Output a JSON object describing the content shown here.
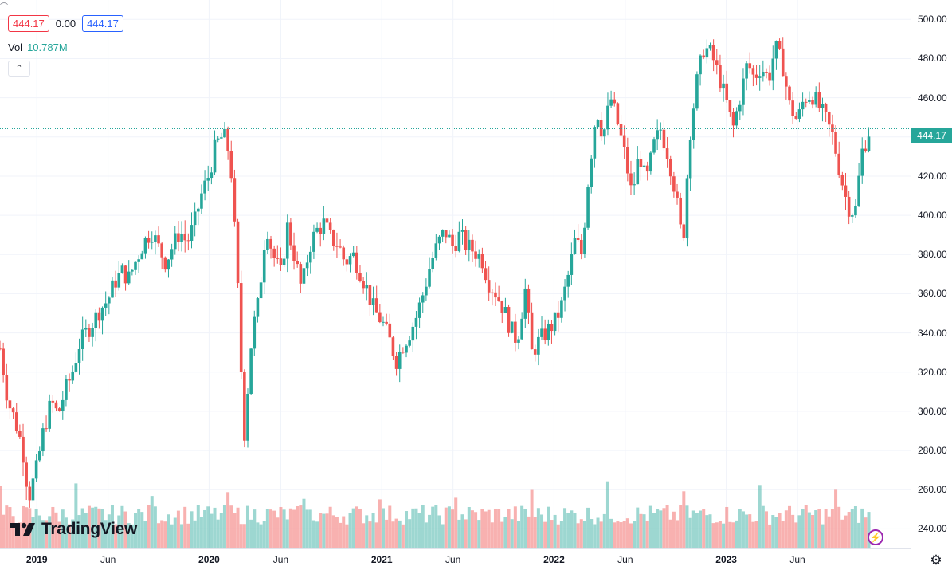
{
  "legend": {
    "open_value": "444.17",
    "change_value": "0.00",
    "close_value": "444.17",
    "volume_label": "Vol",
    "volume_value": "10.787M",
    "collapse_icon": "chevron-up-icon"
  },
  "branding": {
    "logo_text": "TradingView"
  },
  "current_price": "444.17",
  "colors": {
    "up": "#26a69a",
    "down": "#ef5350",
    "grid": "#f0f3fa",
    "accent": "#2962ff"
  },
  "chart_data": {
    "type": "candlestick",
    "price_axis": {
      "labels": [
        "500.00",
        "480.00",
        "460.00",
        "440.00",
        "420.00",
        "400.00",
        "380.00",
        "360.00",
        "340.00",
        "320.00",
        "300.00",
        "280.00",
        "260.00",
        "240.00"
      ]
    },
    "ylim": [
      230,
      505
    ],
    "time_axis": {
      "labels": [
        {
          "text": "2019",
          "date": "2019-01-01",
          "year": true
        },
        {
          "text": "Jun",
          "date": "2019-06-01",
          "year": false
        },
        {
          "text": "2020",
          "date": "2020-01-01",
          "year": true
        },
        {
          "text": "Jun",
          "date": "2020-06-01",
          "year": false
        },
        {
          "text": "2021",
          "date": "2021-01-01",
          "year": true
        },
        {
          "text": "Jun",
          "date": "2021-06-01",
          "year": false
        },
        {
          "text": "2022",
          "date": "2022-01-01",
          "year": true
        },
        {
          "text": "Jun",
          "date": "2022-06-01",
          "year": false
        },
        {
          "text": "2023",
          "date": "2023-01-01",
          "year": true
        },
        {
          "text": "Jun",
          "date": "2023-06-01",
          "year": false
        }
      ]
    },
    "xlim": [
      "2018-10-15",
      "2023-11-15"
    ],
    "close_series": [
      [
        "2018-10-15",
        332
      ],
      [
        "2018-11-01",
        305
      ],
      [
        "2018-11-15",
        296
      ],
      [
        "2018-12-01",
        282
      ],
      [
        "2018-12-15",
        256
      ],
      [
        "2019-01-01",
        271
      ],
      [
        "2019-01-15",
        290
      ],
      [
        "2019-02-01",
        305
      ],
      [
        "2019-02-15",
        298
      ],
      [
        "2019-03-01",
        310
      ],
      [
        "2019-03-15",
        318
      ],
      [
        "2019-04-01",
        334
      ],
      [
        "2019-04-15",
        340
      ],
      [
        "2019-05-01",
        346
      ],
      [
        "2019-05-15",
        352
      ],
      [
        "2019-06-01",
        357
      ],
      [
        "2019-06-15",
        366
      ],
      [
        "2019-07-01",
        371
      ],
      [
        "2019-07-15",
        368
      ],
      [
        "2019-08-01",
        378
      ],
      [
        "2019-08-15",
        386
      ],
      [
        "2019-09-01",
        392
      ],
      [
        "2019-09-15",
        384
      ],
      [
        "2019-10-01",
        376
      ],
      [
        "2019-10-15",
        384
      ],
      [
        "2019-11-01",
        392
      ],
      [
        "2019-11-15",
        386
      ],
      [
        "2019-12-01",
        396
      ],
      [
        "2019-12-15",
        410
      ],
      [
        "2020-01-01",
        421
      ],
      [
        "2020-01-15",
        436
      ],
      [
        "2020-02-01",
        441
      ],
      [
        "2020-02-15",
        430
      ],
      [
        "2020-03-01",
        368
      ],
      [
        "2020-03-15",
        286
      ],
      [
        "2020-04-01",
        340
      ],
      [
        "2020-04-15",
        356
      ],
      [
        "2020-05-01",
        396
      ],
      [
        "2020-05-15",
        380
      ],
      [
        "2020-06-01",
        370
      ],
      [
        "2020-06-15",
        394
      ],
      [
        "2020-07-01",
        378
      ],
      [
        "2020-07-15",
        362
      ],
      [
        "2020-08-01",
        384
      ],
      [
        "2020-08-15",
        392
      ],
      [
        "2020-09-01",
        396
      ],
      [
        "2020-09-15",
        388
      ],
      [
        "2020-10-01",
        385
      ],
      [
        "2020-10-15",
        376
      ],
      [
        "2020-11-01",
        380
      ],
      [
        "2020-11-15",
        372
      ],
      [
        "2020-12-01",
        362
      ],
      [
        "2020-12-15",
        352
      ],
      [
        "2021-01-01",
        346
      ],
      [
        "2021-01-15",
        338
      ],
      [
        "2021-02-01",
        326
      ],
      [
        "2021-02-15",
        334
      ],
      [
        "2021-03-01",
        340
      ],
      [
        "2021-03-15",
        348
      ],
      [
        "2021-04-01",
        362
      ],
      [
        "2021-04-15",
        376
      ],
      [
        "2021-05-01",
        386
      ],
      [
        "2021-05-15",
        392
      ],
      [
        "2021-06-01",
        384
      ],
      [
        "2021-06-15",
        390
      ],
      [
        "2021-07-01",
        384
      ],
      [
        "2021-07-15",
        382
      ],
      [
        "2021-08-01",
        378
      ],
      [
        "2021-08-15",
        366
      ],
      [
        "2021-09-01",
        360
      ],
      [
        "2021-09-15",
        353
      ],
      [
        "2021-10-01",
        342
      ],
      [
        "2021-10-15",
        336
      ],
      [
        "2021-11-01",
        362
      ],
      [
        "2021-11-15",
        330
      ],
      [
        "2021-12-01",
        336
      ],
      [
        "2021-12-15",
        340
      ],
      [
        "2022-01-01",
        345
      ],
      [
        "2022-01-15",
        352
      ],
      [
        "2022-02-01",
        370
      ],
      [
        "2022-02-15",
        388
      ],
      [
        "2022-03-01",
        380
      ],
      [
        "2022-03-15",
        420
      ],
      [
        "2022-04-01",
        455
      ],
      [
        "2022-04-15",
        440
      ],
      [
        "2022-05-01",
        460
      ],
      [
        "2022-05-15",
        448
      ],
      [
        "2022-06-01",
        430
      ],
      [
        "2022-06-15",
        410
      ],
      [
        "2022-07-01",
        432
      ],
      [
        "2022-07-15",
        416
      ],
      [
        "2022-08-01",
        436
      ],
      [
        "2022-08-15",
        444
      ],
      [
        "2022-09-01",
        430
      ],
      [
        "2022-09-15",
        412
      ],
      [
        "2022-10-01",
        384
      ],
      [
        "2022-10-15",
        440
      ],
      [
        "2022-11-01",
        470
      ],
      [
        "2022-11-15",
        486
      ],
      [
        "2022-12-01",
        482
      ],
      [
        "2022-12-15",
        472
      ],
      [
        "2023-01-01",
        458
      ],
      [
        "2023-01-15",
        444
      ],
      [
        "2023-02-01",
        462
      ],
      [
        "2023-02-15",
        478
      ],
      [
        "2023-03-01",
        470
      ],
      [
        "2023-03-15",
        476
      ],
      [
        "2023-04-01",
        470
      ],
      [
        "2023-04-15",
        486
      ],
      [
        "2023-05-01",
        476
      ],
      [
        "2023-05-15",
        456
      ],
      [
        "2023-06-01",
        448
      ],
      [
        "2023-06-15",
        460
      ],
      [
        "2023-07-01",
        462
      ],
      [
        "2023-07-15",
        456
      ],
      [
        "2023-08-01",
        448
      ],
      [
        "2023-08-15",
        440
      ],
      [
        "2023-09-01",
        420
      ],
      [
        "2023-09-15",
        405
      ],
      [
        "2023-10-01",
        401
      ],
      [
        "2023-10-15",
        432
      ],
      [
        "2023-11-01",
        444
      ]
    ]
  }
}
